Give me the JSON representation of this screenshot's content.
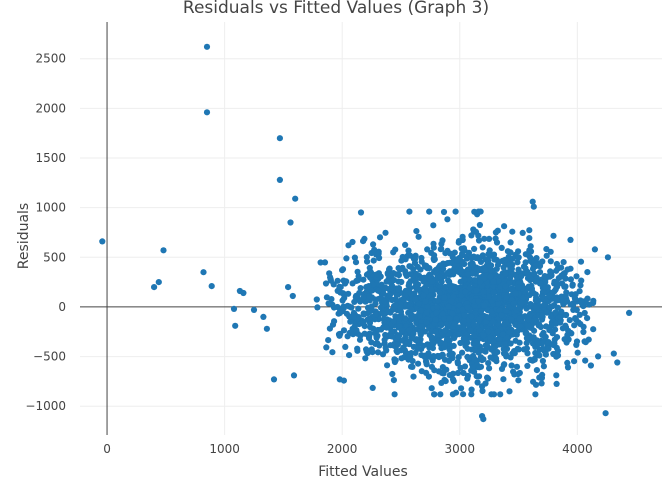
{
  "chart_data": {
    "type": "scatter",
    "title": "Residuals vs Fitted Values (Graph 3)",
    "xlabel": "Fitted Values",
    "ylabel": "Residuals",
    "xlim": [
      -230,
      4720
    ],
    "ylim": [
      -1290,
      2870
    ],
    "x_ticks": [
      0,
      1000,
      2000,
      3000,
      4000
    ],
    "x_tick_labels": [
      "0",
      "1000",
      "2000",
      "3000",
      "4000"
    ],
    "y_ticks": [
      -1000,
      -500,
      0,
      500,
      1000,
      1500,
      2000,
      2500
    ],
    "y_tick_labels": [
      "−1000",
      "−500",
      "0",
      "500",
      "1000",
      "1500",
      "2000",
      "2500"
    ],
    "grid": true,
    "marker_color": "#1f77b4",
    "outliers": [
      {
        "x": 850,
        "y": 2620
      },
      {
        "x": 850,
        "y": 1960
      },
      {
        "x": 1470,
        "y": 1700
      },
      {
        "x": 1470,
        "y": 1280
      },
      {
        "x": 1600,
        "y": 1090
      },
      {
        "x": 1560,
        "y": 850
      },
      {
        "x": -40,
        "y": 660
      },
      {
        "x": 480,
        "y": 570
      },
      {
        "x": 820,
        "y": 350
      },
      {
        "x": 440,
        "y": 250
      },
      {
        "x": 400,
        "y": 200
      },
      {
        "x": 890,
        "y": 210
      },
      {
        "x": 1130,
        "y": 160
      },
      {
        "x": 1160,
        "y": 140
      },
      {
        "x": 1540,
        "y": 200
      },
      {
        "x": 1580,
        "y": 110
      },
      {
        "x": 1080,
        "y": -20
      },
      {
        "x": 1090,
        "y": -190
      },
      {
        "x": 1250,
        "y": -30
      },
      {
        "x": 1330,
        "y": -100
      },
      {
        "x": 1360,
        "y": -220
      },
      {
        "x": 1420,
        "y": -730
      },
      {
        "x": 1590,
        "y": -690
      },
      {
        "x": 1980,
        "y": -730
      },
      {
        "x": 3190,
        "y": -1100
      },
      {
        "x": 3200,
        "y": -1130
      },
      {
        "x": 4240,
        "y": -1070
      },
      {
        "x": 3620,
        "y": 1060
      },
      {
        "x": 3630,
        "y": 1010
      },
      {
        "x": 4260,
        "y": 500
      },
      {
        "x": 4440,
        "y": -60
      },
      {
        "x": 4340,
        "y": -560
      },
      {
        "x": 4310,
        "y": -470
      }
    ],
    "cluster": {
      "count": 2200,
      "x_range": [
        1750,
        4200
      ],
      "x_mode": 3150,
      "y_mean": 0,
      "y_sd": 290,
      "y_range": [
        -880,
        960
      ]
    }
  }
}
